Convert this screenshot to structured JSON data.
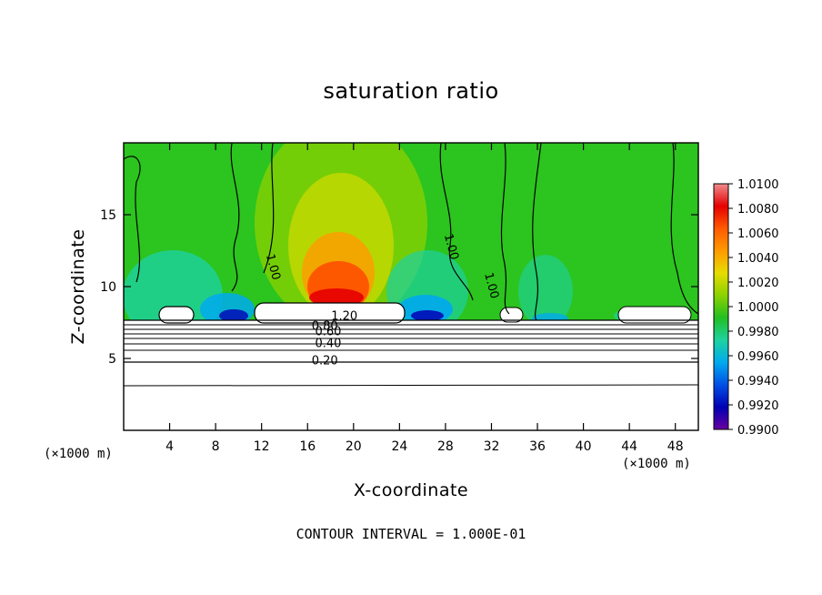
{
  "chart_data": {
    "type": "heatmap",
    "title": "saturation ratio",
    "xlabel": "X-coordinate",
    "ylabel": "Z-coordinate",
    "x_unit": "(×1000 m)",
    "xlim": [
      0,
      50
    ],
    "ylim": [
      0,
      20
    ],
    "x_ticks": [
      4,
      8,
      12,
      16,
      20,
      24,
      28,
      32,
      36,
      40,
      44,
      48
    ],
    "y_ticks": [
      5,
      10,
      15
    ],
    "colorbar": {
      "range": [
        0.99,
        1.01
      ],
      "tick_labels": [
        "1.0100",
        "1.0080",
        "1.0060",
        "1.0040",
        "1.0020",
        "1.0000",
        "0.9980",
        "0.9960",
        "0.9940",
        "0.9920",
        "0.9900"
      ],
      "colors": [
        "#f08c8c",
        "#e60000",
        "#ff5a00",
        "#ff9a00",
        "#e6dc00",
        "#8cd200",
        "#22bf22",
        "#1ed2a0",
        "#00aaee",
        "#0050e6",
        "#0000b4",
        "#6a00a0"
      ]
    },
    "contour_labels": [
      {
        "text": "1.20",
        "x": 19.2,
        "y": 7.7
      },
      {
        "text": "0.80",
        "x": 17.5,
        "y": 7.0
      },
      {
        "text": "0.60",
        "x": 17.8,
        "y": 6.6
      },
      {
        "text": "0.40",
        "x": 17.8,
        "y": 5.8
      },
      {
        "text": "0.20",
        "x": 17.5,
        "y": 4.6
      },
      {
        "text": "1.00",
        "x": 12.7,
        "y": 11.3
      },
      {
        "text": "1.00",
        "x": 28.2,
        "y": 12.7
      },
      {
        "text": "1.00",
        "x": 31.7,
        "y": 10.0
      }
    ],
    "contour_interval": "CONTOUR INTERVAL = 1.000E-01"
  }
}
